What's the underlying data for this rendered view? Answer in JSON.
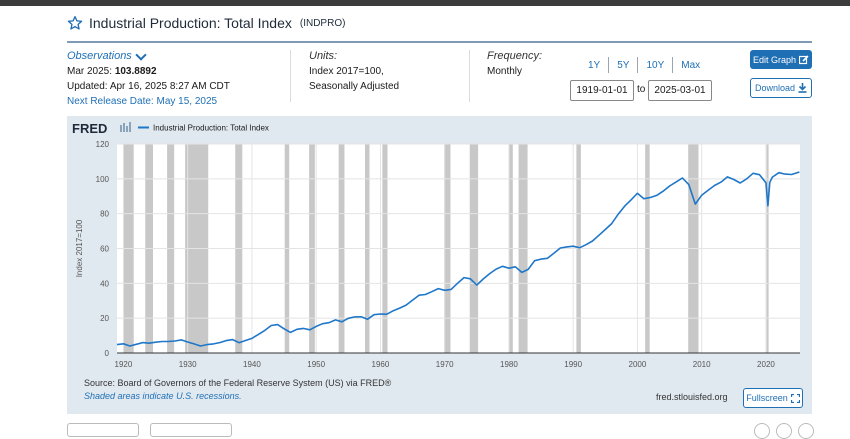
{
  "header": {
    "title": "Industrial Production: Total Index",
    "series_id": "(INDPRO)",
    "star_icon": "star-outline-icon"
  },
  "observations": {
    "label": "Observations",
    "latest_period": "Mar 2025:",
    "latest_value": "103.8892",
    "updated": "Updated: Apr 16, 2025 8:27 AM CDT",
    "next_release": "Next Release Date: May 15, 2025"
  },
  "units": {
    "label": "Units:",
    "line1": "Index 2017=100,",
    "line2": "Seasonally Adjusted"
  },
  "frequency": {
    "label": "Frequency:",
    "value": "Monthly"
  },
  "range_buttons": [
    "1Y",
    "5Y",
    "10Y",
    "Max"
  ],
  "date_range": {
    "start": "1919-01-01",
    "to": "to",
    "end": "2025-03-01"
  },
  "buttons": {
    "edit_graph": "Edit Graph",
    "download": "Download",
    "fullscreen": "Fullscreen"
  },
  "footer": {
    "source": "Source: Board of Governors of the Federal Reserve System (US) via FRED®",
    "shaded_note": "Shaded areas indicate U.S. recessions.",
    "url": "fred.stlouisfed.org"
  },
  "colors": {
    "line": "#1f77c9",
    "panel": "#e1e9f0",
    "accent": "#1f6fb5",
    "recession": "#c8c8c8"
  },
  "chart_data": {
    "type": "line",
    "brand": "FRED",
    "legend": "Industrial Production: Total Index",
    "ylabel": "Index 2017=100",
    "xlabel": "",
    "xlim": [
      1919,
      2025.3
    ],
    "ylim": [
      0,
      120
    ],
    "yticks": [
      0,
      20,
      40,
      60,
      80,
      100,
      120
    ],
    "xticks": [
      1920,
      1930,
      1940,
      1950,
      1960,
      1970,
      1980,
      1990,
      2000,
      2010,
      2020
    ],
    "grid": true,
    "recessions": [
      [
        1920.0,
        1921.6
      ],
      [
        1923.4,
        1924.6
      ],
      [
        1926.8,
        1927.9
      ],
      [
        1929.6,
        1933.2
      ],
      [
        1937.4,
        1938.5
      ],
      [
        1945.1,
        1945.8
      ],
      [
        1948.9,
        1949.8
      ],
      [
        1953.5,
        1954.4
      ],
      [
        1957.6,
        1958.3
      ],
      [
        1960.3,
        1961.1
      ],
      [
        1969.9,
        1970.9
      ],
      [
        1973.9,
        1975.2
      ],
      [
        1980.0,
        1980.6
      ],
      [
        1981.5,
        1982.9
      ],
      [
        1990.5,
        1991.2
      ],
      [
        2001.2,
        2001.9
      ],
      [
        2007.9,
        2009.5
      ],
      [
        2020.1,
        2020.4
      ]
    ],
    "series": [
      {
        "name": "Industrial Production: Total Index",
        "x": [
          1919,
          1920,
          1921,
          1922,
          1923,
          1924,
          1925,
          1926,
          1927,
          1928,
          1929,
          1930,
          1931,
          1932,
          1933,
          1934,
          1935,
          1936,
          1937,
          1938,
          1939,
          1940,
          1941,
          1942,
          1943,
          1944,
          1945,
          1946,
          1947,
          1948,
          1949,
          1950,
          1951,
          1952,
          1953,
          1954,
          1955,
          1956,
          1957,
          1958,
          1959,
          1960,
          1961,
          1962,
          1963,
          1964,
          1965,
          1966,
          1967,
          1968,
          1969,
          1970,
          1971,
          1972,
          1973,
          1974,
          1975,
          1976,
          1977,
          1978,
          1979,
          1980,
          1981,
          1982,
          1983,
          1984,
          1985,
          1986,
          1987,
          1988,
          1989,
          1990,
          1991,
          1992,
          1993,
          1994,
          1995,
          1996,
          1997,
          1998,
          1999,
          2000,
          2001,
          2002,
          2003,
          2004,
          2005,
          2006,
          2007,
          2008,
          2009,
          2010,
          2011,
          2012,
          2013,
          2014,
          2015,
          2016,
          2017,
          2018,
          2019,
          2020,
          2020.3,
          2020.6,
          2021,
          2022,
          2023,
          2024,
          2025.2
        ],
        "values": [
          4.8,
          5.3,
          4.0,
          5.0,
          6.0,
          5.6,
          6.2,
          6.6,
          6.6,
          6.9,
          7.5,
          6.3,
          5.2,
          4.0,
          4.8,
          5.2,
          6.0,
          7.1,
          7.7,
          5.9,
          7.2,
          8.4,
          10.7,
          13.0,
          15.8,
          16.3,
          13.9,
          11.8,
          13.6,
          14.1,
          13.3,
          15.3,
          16.8,
          17.4,
          19.0,
          17.9,
          19.9,
          20.7,
          20.8,
          19.4,
          22.0,
          22.4,
          22.3,
          24.3,
          25.8,
          27.5,
          30.4,
          33.2,
          33.6,
          35.2,
          37.0,
          36.0,
          36.5,
          40.0,
          43.3,
          42.6,
          39.0,
          42.5,
          45.6,
          48.2,
          49.8,
          48.7,
          49.5,
          46.3,
          48.0,
          53.0,
          53.9,
          54.4,
          57.3,
          60.3,
          60.9,
          61.3,
          60.4,
          62.2,
          64.3,
          67.6,
          70.9,
          74.3,
          79.7,
          84.3,
          87.9,
          91.7,
          88.6,
          89.3,
          90.5,
          92.9,
          95.9,
          98.1,
          100.5,
          96.7,
          85.5,
          90.6,
          93.4,
          96.2,
          98.1,
          101.1,
          99.6,
          97.6,
          100.0,
          103.2,
          102.4,
          97.8,
          84.5,
          98.0,
          101.0,
          103.5,
          102.7,
          102.5,
          103.9
        ]
      }
    ]
  }
}
